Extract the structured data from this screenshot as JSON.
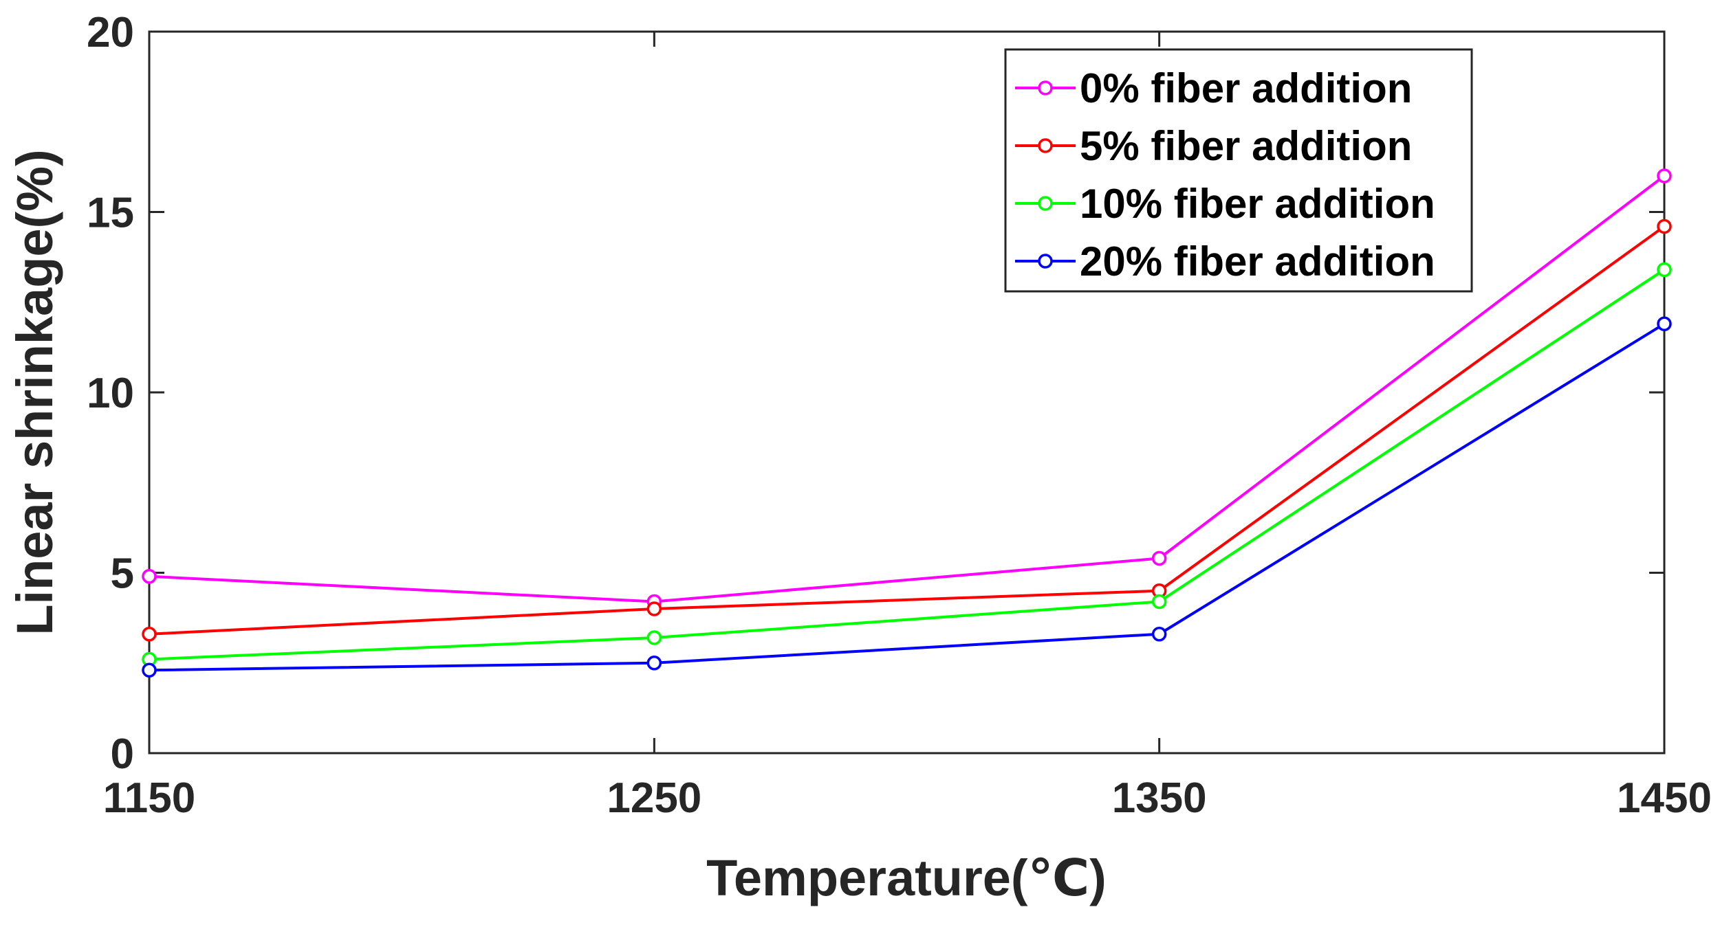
{
  "chart_data": {
    "type": "line",
    "title": "",
    "xlabel": "Temperature(℃)",
    "ylabel": "Linear shrinkage(%)",
    "x": [
      1150,
      1250,
      1350,
      1450
    ],
    "x_tick_labels": [
      "1150",
      "1250",
      "1350",
      "1450"
    ],
    "y_ticks": [
      0,
      5,
      10,
      15,
      20
    ],
    "y_tick_labels": [
      "0",
      "5",
      "10",
      "15",
      "20"
    ],
    "xlim": [
      1150,
      1450
    ],
    "ylim": [
      0,
      20
    ],
    "grid": false,
    "legend_position": "top-right",
    "series": [
      {
        "name": "0% fiber addition",
        "color": "#ff00ff",
        "values": [
          4.9,
          4.2,
          5.4,
          16.0
        ]
      },
      {
        "name": "5% fiber addition",
        "color": "#ff0000",
        "values": [
          3.3,
          4.0,
          4.5,
          14.6
        ]
      },
      {
        "name": "10% fiber addition",
        "color": "#00ff00",
        "values": [
          2.6,
          3.2,
          4.2,
          13.4
        ]
      },
      {
        "name": "20% fiber addition",
        "color": "#0000ff",
        "values": [
          2.3,
          2.5,
          3.3,
          11.9
        ]
      }
    ]
  }
}
